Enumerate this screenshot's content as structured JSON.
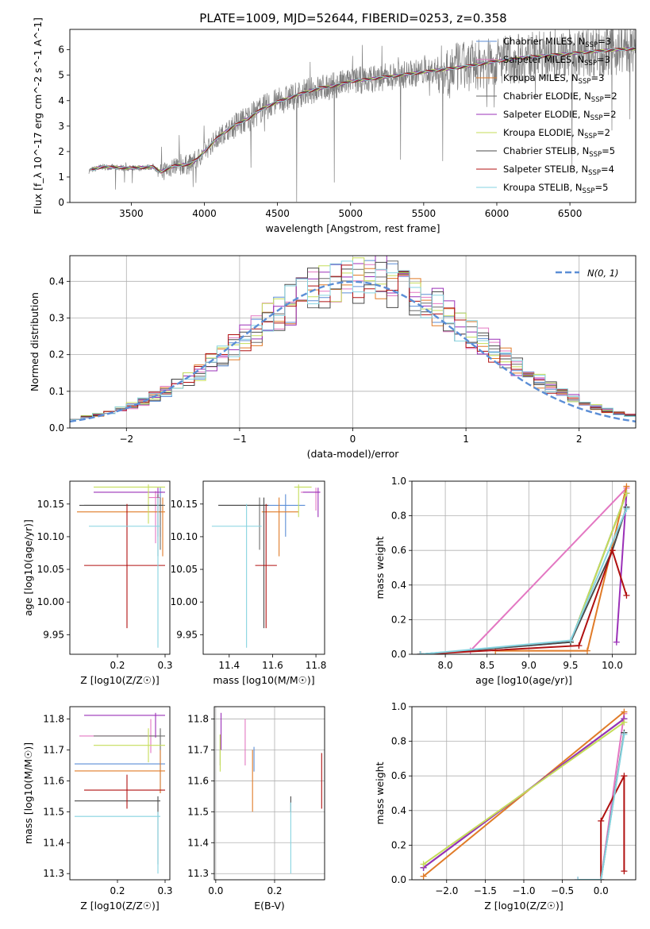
{
  "figure_title": "PLATE=1009, MJD=52644, FIBERID=0253, z=0.358",
  "colors": {
    "Chabrier MILES": "#5b8ed6",
    "Salpeter MILES": "#e377c2",
    "Kroupa MILES": "#e07b28",
    "Chabrier ELODIE": "#6b6b6b",
    "Salpeter ELODIE": "#9b30b8",
    "Kroupa ELODIE": "#c5dd5a",
    "Chabrier STELIB": "#4a4a4a",
    "Salpeter STELIB": "#b01010",
    "Kroupa STELIB": "#86d3e0",
    "data": "#808080"
  },
  "chart_data": [
    {
      "id": "spectrum",
      "type": "line",
      "xlabel": "wavelength [Angstrom, rest frame]",
      "ylabel": "Flux [f_λ 10^-17 erg cm^-2 s^-1 A^-1]",
      "xlim": [
        3080,
        6950
      ],
      "ylim": [
        0,
        6.8
      ],
      "xticks": [
        3500,
        4000,
        4500,
        5000,
        5500,
        6000,
        6500
      ],
      "yticks": [
        0,
        1,
        2,
        3,
        4,
        5,
        6
      ],
      "grid": false,
      "legend_position": "upper-right",
      "data_x_range": [
        3210,
        6950
      ],
      "continuum_points": [
        [
          3210,
          1.25
        ],
        [
          3300,
          1.4
        ],
        [
          3500,
          1.35
        ],
        [
          3650,
          1.4
        ],
        [
          3700,
          1.2
        ],
        [
          3800,
          1.45
        ],
        [
          3900,
          1.5
        ],
        [
          3950,
          1.7
        ],
        [
          4000,
          2.0
        ],
        [
          4100,
          2.6
        ],
        [
          4200,
          3.0
        ],
        [
          4300,
          3.3
        ],
        [
          4400,
          3.7
        ],
        [
          4500,
          3.95
        ],
        [
          4600,
          4.15
        ],
        [
          4700,
          4.35
        ],
        [
          4800,
          4.5
        ],
        [
          4900,
          4.6
        ],
        [
          5000,
          4.75
        ],
        [
          5200,
          4.9
        ],
        [
          5400,
          5.05
        ],
        [
          5600,
          5.2
        ],
        [
          5800,
          5.35
        ],
        [
          6000,
          5.55
        ],
        [
          6200,
          5.7
        ],
        [
          6400,
          5.8
        ],
        [
          6600,
          5.9
        ],
        [
          6800,
          6.0
        ],
        [
          6950,
          6.05
        ]
      ],
      "series": [
        {
          "name": "Chabrier MILES, N_SSP=3",
          "label_main": "Chabrier MILES, N",
          "label_sub": "SSP",
          "label_tail": "=3"
        },
        {
          "name": "Salpeter MILES, N_SSP=3",
          "label_main": "Salpeter MILES, N",
          "label_sub": "SSP",
          "label_tail": "=3"
        },
        {
          "name": "Kroupa MILES, N_SSP=3",
          "label_main": "Kroupa MILES, N",
          "label_sub": "SSP",
          "label_tail": "=3"
        },
        {
          "name": "Chabrier ELODIE, N_SSP=2",
          "label_main": "Chabrier ELODIE, N",
          "label_sub": "SSP",
          "label_tail": "=2"
        },
        {
          "name": "Salpeter ELODIE, N_SSP=2",
          "label_main": "Salpeter ELODIE, N",
          "label_sub": "SSP",
          "label_tail": "=2"
        },
        {
          "name": "Kroupa ELODIE, N_SSP=2",
          "label_main": "Kroupa ELODIE, N",
          "label_sub": "SSP",
          "label_tail": "=2"
        },
        {
          "name": "Chabrier STELIB, N_SSP=5",
          "label_main": "Chabrier STELIB, N",
          "label_sub": "SSP",
          "label_tail": "=5"
        },
        {
          "name": "Salpeter STELIB, N_SSP=4",
          "label_main": "Salpeter STELIB, N",
          "label_sub": "SSP",
          "label_tail": "=4"
        },
        {
          "name": "Kroupa STELIB, N_SSP=5",
          "label_main": "Kroupa STELIB, N",
          "label_sub": "SSP",
          "label_tail": "=5"
        }
      ]
    },
    {
      "id": "residuals",
      "type": "line",
      "xlabel": "(data-model)/error",
      "ylabel": "Normed distribution",
      "xlim": [
        -2.5,
        2.5
      ],
      "ylim": [
        0,
        0.47
      ],
      "xticks": [
        -2,
        -1,
        0,
        1,
        2
      ],
      "yticks": [
        0.0,
        0.1,
        0.2,
        0.3,
        0.4
      ],
      "grid": true,
      "legend_position": "upper-right",
      "legend_label": "N(0, 1)",
      "reference": {
        "type": "normal",
        "mean": 0,
        "sigma": 1,
        "style": "dashed"
      },
      "bin_width": 0.1
    },
    {
      "id": "age_vs_Z",
      "type": "scatter",
      "xlabel": "Z [log10(Z/Z☉)]",
      "ylabel": "age  [log10(age/yr)]",
      "xlim": [
        0.1,
        0.31
      ],
      "ylim": [
        9.92,
        10.185
      ],
      "xticks": [
        0.2,
        0.3
      ],
      "yticks": [
        9.95,
        10.0,
        10.05,
        10.1,
        10.15
      ],
      "grid": false,
      "points": [
        {
          "series": "Chabrier MILES",
          "x": 0.29,
          "y": 10.168,
          "xerr": [
            0.29,
            0.295
          ],
          "yerr": [
            10.1,
            10.175
          ]
        },
        {
          "series": "Salpeter MILES",
          "x": 0.28,
          "y": 10.16,
          "xerr": [
            0.265,
            0.29
          ],
          "yerr": [
            10.09,
            10.17
          ]
        },
        {
          "series": "Kroupa MILES",
          "x": 0.295,
          "y": 10.138,
          "xerr": [
            0.115,
            0.3
          ],
          "yerr": [
            10.07,
            10.16
          ]
        },
        {
          "series": "Chabrier ELODIE",
          "x": 0.29,
          "y": 10.148,
          "xerr": [
            0.13,
            0.3
          ],
          "yerr": [
            10.08,
            10.16
          ]
        },
        {
          "series": "Salpeter ELODIE",
          "x": 0.285,
          "y": 10.168,
          "xerr": [
            0.15,
            0.3
          ],
          "yerr": [
            10.1,
            10.175
          ]
        },
        {
          "series": "Kroupa ELODIE",
          "x": 0.265,
          "y": 10.176,
          "xerr": [
            0.15,
            0.3
          ],
          "yerr": [
            10.12,
            10.18
          ]
        },
        {
          "series": "Chabrier STELIB",
          "x": 0.285,
          "y": 10.148,
          "xerr": [
            0.12,
            0.295
          ],
          "yerr": [
            10.07,
            10.165
          ]
        },
        {
          "series": "Salpeter STELIB",
          "x": 0.22,
          "y": 10.056,
          "xerr": [
            0.13,
            0.3
          ],
          "yerr": [
            9.96,
            10.15
          ]
        },
        {
          "series": "Kroupa STELIB",
          "x": 0.285,
          "y": 10.116,
          "xerr": [
            0.14,
            0.29
          ],
          "yerr": [
            9.93,
            10.16
          ]
        }
      ]
    },
    {
      "id": "age_vs_mass",
      "type": "scatter",
      "xlabel": "mass [log10(M/M☉)]",
      "ylabel": "",
      "xlim": [
        11.28,
        11.84
      ],
      "ylim": [
        9.92,
        10.185
      ],
      "xticks": [
        11.4,
        11.6,
        11.8
      ],
      "yticks": [
        9.95,
        10.0,
        10.05,
        10.1,
        10.15
      ],
      "grid": false,
      "points": [
        {
          "series": "Chabrier MILES",
          "x": 11.66,
          "y": 10.148,
          "xerr": [
            11.55,
            11.75
          ],
          "yerr": [
            10.1,
            10.165
          ]
        },
        {
          "series": "Salpeter MILES",
          "x": 11.8,
          "y": 10.168,
          "xerr": [
            11.73,
            11.82
          ],
          "yerr": [
            10.14,
            10.175
          ]
        },
        {
          "series": "Kroupa MILES",
          "x": 11.63,
          "y": 10.138,
          "xerr": [
            11.55,
            11.72
          ],
          "yerr": [
            10.07,
            10.16
          ]
        },
        {
          "series": "Chabrier ELODIE",
          "x": 11.54,
          "y": 10.148,
          "xerr": [
            11.35,
            11.56
          ],
          "yerr": [
            10.08,
            10.16
          ]
        },
        {
          "series": "Salpeter ELODIE",
          "x": 11.81,
          "y": 10.168,
          "xerr": [
            11.74,
            11.82
          ],
          "yerr": [
            10.13,
            10.175
          ]
        },
        {
          "series": "Kroupa ELODIE",
          "x": 11.72,
          "y": 10.176,
          "xerr": [
            11.7,
            11.78
          ],
          "yerr": [
            10.13,
            10.18
          ]
        },
        {
          "series": "Chabrier STELIB",
          "x": 11.56,
          "y": 10.148,
          "xerr": [
            11.35,
            11.58
          ],
          "yerr": [
            9.96,
            10.16
          ]
        },
        {
          "series": "Salpeter STELIB",
          "x": 11.57,
          "y": 10.056,
          "xerr": [
            11.52,
            11.62
          ],
          "yerr": [
            9.96,
            10.15
          ]
        },
        {
          "series": "Kroupa STELIB",
          "x": 11.48,
          "y": 10.116,
          "xerr": [
            11.32,
            11.55
          ],
          "yerr": [
            9.93,
            10.15
          ]
        }
      ]
    },
    {
      "id": "massweight_vs_age",
      "type": "line",
      "xlabel": "age  [log10(age/yr)]",
      "ylabel": "mass weight",
      "xlim": [
        7.6,
        10.28
      ],
      "ylim": [
        0,
        1.0
      ],
      "xticks": [
        8.0,
        8.5,
        9.0,
        9.5,
        10.0
      ],
      "yticks": [
        0.0,
        0.2,
        0.4,
        0.6,
        0.8,
        1.0
      ],
      "grid": true,
      "series": [
        {
          "name": "Chabrier MILES",
          "x": [
            7.7,
            9.5,
            10.17
          ],
          "y": [
            0.0,
            0.07,
            0.93
          ]
        },
        {
          "name": "Salpeter MILES",
          "x": [
            8.3,
            10.17
          ],
          "y": [
            0.02,
            0.96
          ]
        },
        {
          "name": "Kroupa MILES",
          "x": [
            8.6,
            9.7,
            10.17
          ],
          "y": [
            0.02,
            0.02,
            0.97
          ]
        },
        {
          "name": "Chabrier ELODIE",
          "x": [
            9.5,
            10.17
          ],
          "y": [
            0.07,
            0.93
          ]
        },
        {
          "name": "Salpeter ELODIE",
          "x": [
            10.05,
            10.17
          ],
          "y": [
            0.07,
            0.93
          ]
        },
        {
          "name": "Kroupa ELODIE",
          "x": [
            9.5,
            10.17
          ],
          "y": [
            0.07,
            0.93
          ]
        },
        {
          "name": "Chabrier STELIB",
          "x": [
            7.7,
            9.5,
            10.0,
            10.17
          ],
          "y": [
            0.0,
            0.07,
            0.6,
            0.85
          ]
        },
        {
          "name": "Salpeter STELIB",
          "x": [
            7.7,
            9.6,
            10.0,
            10.17
          ],
          "y": [
            0.0,
            0.05,
            0.6,
            0.34
          ]
        },
        {
          "name": "Kroupa STELIB",
          "x": [
            7.7,
            9.5,
            10.17
          ],
          "y": [
            0.0,
            0.08,
            0.84
          ]
        }
      ]
    },
    {
      "id": "mass_vs_Z",
      "type": "scatter",
      "xlabel": "Z [log10(Z/Z☉)]",
      "ylabel": "mass [log10(M/M☉)]",
      "xlim": [
        0.1,
        0.31
      ],
      "ylim": [
        11.28,
        11.84
      ],
      "xticks": [
        0.2,
        0.3
      ],
      "yticks": [
        11.3,
        11.4,
        11.5,
        11.6,
        11.7,
        11.8
      ],
      "grid": false,
      "points": [
        {
          "series": "Chabrier MILES",
          "x": 0.29,
          "y": 11.655,
          "xerr": [
            0.11,
            0.3
          ],
          "yerr": [
            11.56,
            11.7
          ]
        },
        {
          "series": "Salpeter MILES",
          "x": 0.27,
          "y": 11.745,
          "xerr": [
            0.12,
            0.28
          ],
          "yerr": [
            11.69,
            11.8
          ]
        },
        {
          "series": "Kroupa MILES",
          "x": 0.29,
          "y": 11.632,
          "xerr": [
            0.11,
            0.3
          ],
          "yerr": [
            11.56,
            11.7
          ]
        },
        {
          "series": "Chabrier ELODIE",
          "x": 0.29,
          "y": 11.745,
          "xerr": [
            0.15,
            0.3
          ],
          "yerr": [
            11.7,
            11.77
          ]
        },
        {
          "series": "Salpeter ELODIE",
          "x": 0.28,
          "y": 11.812,
          "xerr": [
            0.13,
            0.3
          ],
          "yerr": [
            11.74,
            11.82
          ]
        },
        {
          "series": "Kroupa ELODIE",
          "x": 0.265,
          "y": 11.715,
          "xerr": [
            0.15,
            0.3
          ],
          "yerr": [
            11.66,
            11.77
          ]
        },
        {
          "series": "Chabrier STELIB",
          "x": 0.285,
          "y": 11.535,
          "xerr": [
            0.11,
            0.29
          ],
          "yerr": [
            11.33,
            11.55
          ]
        },
        {
          "series": "Salpeter STELIB",
          "x": 0.22,
          "y": 11.57,
          "xerr": [
            0.13,
            0.3
          ],
          "yerr": [
            11.51,
            11.62
          ]
        },
        {
          "series": "Kroupa STELIB",
          "x": 0.285,
          "y": 11.485,
          "xerr": [
            0.11,
            0.29
          ],
          "yerr": [
            11.3,
            11.5
          ]
        }
      ]
    },
    {
      "id": "mass_vs_EBV",
      "type": "scatter",
      "xlabel": "E(B-V)",
      "ylabel": "",
      "xlim": [
        -0.005,
        0.37
      ],
      "ylim": [
        11.28,
        11.84
      ],
      "xticks": [
        0.0,
        0.2
      ],
      "yticks": [
        11.3,
        11.4,
        11.5,
        11.6,
        11.7,
        11.8
      ],
      "grid": true,
      "points": [
        {
          "series": "Chabrier MILES",
          "x": 0.13,
          "y": 11.7,
          "yerr": [
            11.63,
            11.71
          ]
        },
        {
          "series": "Salpeter MILES",
          "x": 0.1,
          "y": 11.73,
          "yerr": [
            11.65,
            11.8
          ]
        },
        {
          "series": "Kroupa MILES",
          "x": 0.125,
          "y": 11.6,
          "yerr": [
            11.5,
            11.7
          ]
        },
        {
          "series": "Chabrier ELODIE",
          "x": 0.015,
          "y": 11.7,
          "yerr": [
            11.65,
            11.75
          ]
        },
        {
          "series": "Salpeter ELODIE",
          "x": 0.018,
          "y": 11.75,
          "yerr": [
            11.7,
            11.82
          ]
        },
        {
          "series": "Kroupa ELODIE",
          "x": 0.015,
          "y": 11.68,
          "yerr": [
            11.63,
            11.75
          ]
        },
        {
          "series": "Chabrier STELIB",
          "x": 0.255,
          "y": 11.52,
          "yerr": [
            11.5,
            11.55
          ]
        },
        {
          "series": "Salpeter STELIB",
          "x": 0.36,
          "y": 11.6,
          "yerr": [
            11.51,
            11.69
          ]
        },
        {
          "series": "Kroupa STELIB",
          "x": 0.255,
          "y": 11.42,
          "yerr": [
            11.3,
            11.53
          ]
        }
      ]
    },
    {
      "id": "massweight_vs_Z",
      "type": "line",
      "xlabel": "Z [log10(Z/Z☉)]",
      "ylabel": "mass weight",
      "xlim": [
        -2.45,
        0.45
      ],
      "ylim": [
        0,
        1.0
      ],
      "xticks": [
        -2.0,
        -1.5,
        -1.0,
        -0.5,
        0.0
      ],
      "yticks": [
        0.0,
        0.2,
        0.4,
        0.6,
        0.8,
        1.0
      ],
      "grid": true,
      "series": [
        {
          "name": "Chabrier MILES",
          "x": [
            -2.3,
            0.3
          ],
          "y": [
            0.07,
            0.93
          ]
        },
        {
          "name": "Salpeter MILES",
          "x": [
            -0.3,
            0.0,
            0.3
          ],
          "y": [
            0.0,
            0.0,
            0.96
          ]
        },
        {
          "name": "Kroupa MILES",
          "x": [
            -2.3,
            0.3
          ],
          "y": [
            0.02,
            0.97
          ]
        },
        {
          "name": "Chabrier ELODIE",
          "x": [
            -2.3,
            0.3
          ],
          "y": [
            0.07,
            0.93
          ]
        },
        {
          "name": "Salpeter ELODIE",
          "x": [
            -2.3,
            0.3
          ],
          "y": [
            0.07,
            0.93
          ]
        },
        {
          "name": "Kroupa ELODIE",
          "x": [
            -2.3,
            0.3
          ],
          "y": [
            0.09,
            0.91
          ]
        },
        {
          "name": "Chabrier STELIB",
          "x": [
            0.0,
            0.3
          ],
          "y": [
            0.0,
            0.85
          ]
        },
        {
          "name": "Salpeter STELIB",
          "x": [
            0.0,
            0.0,
            0.3,
            0.3
          ],
          "y": [
            0.0,
            0.34,
            0.6,
            0.05
          ]
        },
        {
          "name": "Kroupa STELIB",
          "x": [
            -0.3,
            0.0,
            0.3
          ],
          "y": [
            0.0,
            0.0,
            0.84
          ]
        }
      ]
    }
  ]
}
